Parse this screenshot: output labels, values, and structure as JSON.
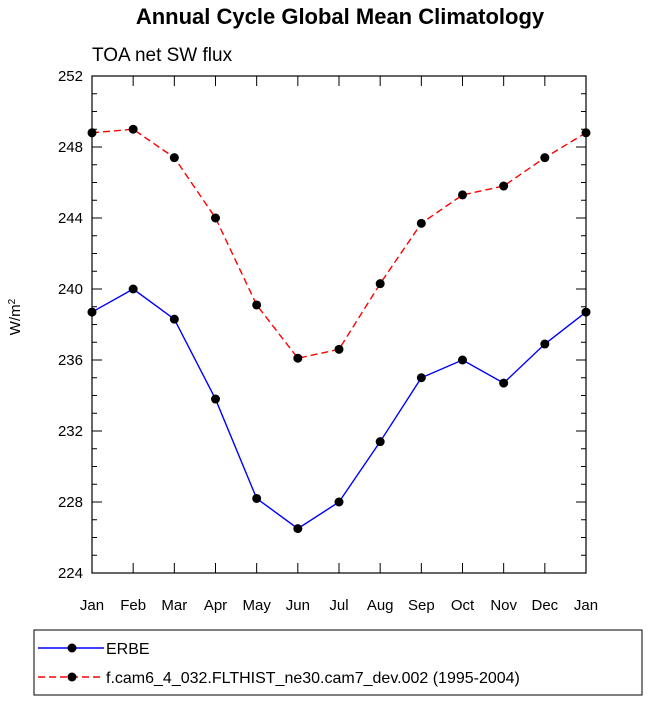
{
  "chart_data": {
    "type": "line",
    "title": "Annual Cycle Global Mean Climatology",
    "subtitle": "TOA net SW flux",
    "xlabel": "",
    "ylabel": "W/m",
    "ylabel_superscript": "2",
    "categories": [
      "Jan",
      "Feb",
      "Mar",
      "Apr",
      "May",
      "Jun",
      "Jul",
      "Aug",
      "Sep",
      "Oct",
      "Nov",
      "Dec",
      "Jan"
    ],
    "ylim": [
      224,
      252
    ],
    "yticks": [
      224,
      228,
      232,
      236,
      240,
      244,
      248,
      252
    ],
    "series": [
      {
        "name": "ERBE",
        "color": "#0000ff",
        "dash": "solid",
        "values": [
          238.7,
          240.0,
          238.3,
          233.8,
          228.2,
          226.5,
          228.0,
          231.4,
          235.0,
          236.0,
          234.7,
          236.9,
          238.7
        ]
      },
      {
        "name": "f.cam6_4_032.FLTHIST_ne30.cam7_dev.002 (1995-2004)",
        "color": "#ff0000",
        "dash": "dashed",
        "values": [
          248.8,
          249.0,
          247.4,
          244.0,
          239.1,
          236.1,
          236.6,
          240.3,
          243.7,
          245.3,
          245.8,
          247.4,
          248.8
        ]
      }
    ],
    "legend_position": "bottom"
  }
}
